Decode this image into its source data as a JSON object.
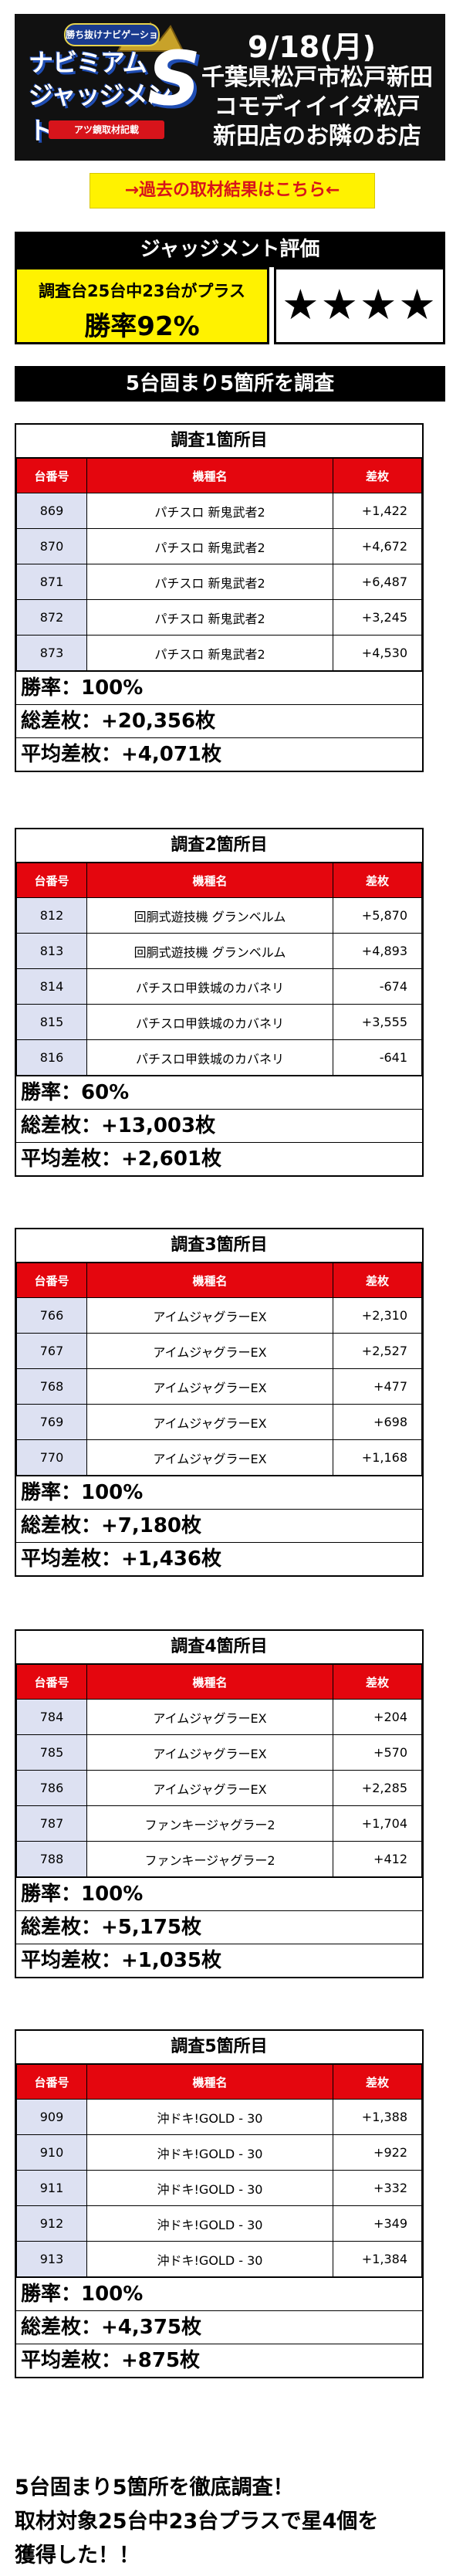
{
  "header": {
    "logo_badge": "勝ち抜けナビゲーション",
    "logo_line1": "ナビミアム",
    "logo_line2": "ジャッジメント",
    "logo_letter": "S",
    "logo_bar": "アツ鏡取材記載",
    "date": "9/18(月)",
    "store_lines": [
      "千葉県松戸市松戸新田",
      "コモディイイダ松戸",
      "新田店のお隣のお店"
    ]
  },
  "link": {
    "label": "→過去の取材結果はこちら←"
  },
  "evaluation": {
    "title": "ジャッジメント評価",
    "summary": "調査台25台中23台がプラス",
    "win_rate": "勝率92%",
    "stars": "★★★★"
  },
  "survey_title": "5台固まり5箇所を調査",
  "columns": [
    "台番号",
    "機種名",
    "差枚"
  ],
  "sections": [
    {
      "title": "調査1箇所目",
      "rows": [
        [
          "869",
          "パチスロ 新鬼武者2",
          "+1,422"
        ],
        [
          "870",
          "パチスロ 新鬼武者2",
          "+4,672"
        ],
        [
          "871",
          "パチスロ 新鬼武者2",
          "+6,487"
        ],
        [
          "872",
          "パチスロ 新鬼武者2",
          "+3,245"
        ],
        [
          "873",
          "パチスロ 新鬼武者2",
          "+4,530"
        ]
      ],
      "win_rate": "勝率：100%",
      "total": "総差枚：+20,356枚",
      "average": "平均差枚：+4,071枚"
    },
    {
      "title": "調査2箇所目",
      "rows": [
        [
          "812",
          "回胴式遊技機 グランベルム",
          "+5,870"
        ],
        [
          "813",
          "回胴式遊技機 グランベルム",
          "+4,893"
        ],
        [
          "814",
          "パチスロ甲鉄城のカバネリ",
          "-674"
        ],
        [
          "815",
          "パチスロ甲鉄城のカバネリ",
          "+3,555"
        ],
        [
          "816",
          "パチスロ甲鉄城のカバネリ",
          "-641"
        ]
      ],
      "win_rate": "勝率：60%",
      "total": "総差枚：+13,003枚",
      "average": "平均差枚：+2,601枚"
    },
    {
      "title": "調査3箇所目",
      "rows": [
        [
          "766",
          "アイムジャグラーEX",
          "+2,310"
        ],
        [
          "767",
          "アイムジャグラーEX",
          "+2,527"
        ],
        [
          "768",
          "アイムジャグラーEX",
          "+477"
        ],
        [
          "769",
          "アイムジャグラーEX",
          "+698"
        ],
        [
          "770",
          "アイムジャグラーEX",
          "+1,168"
        ]
      ],
      "win_rate": "勝率：100%",
      "total": "総差枚：+7,180枚",
      "average": "平均差枚：+1,436枚"
    },
    {
      "title": "調査4箇所目",
      "rows": [
        [
          "784",
          "アイムジャグラーEX",
          "+204"
        ],
        [
          "785",
          "アイムジャグラーEX",
          "+570"
        ],
        [
          "786",
          "アイムジャグラーEX",
          "+2,285"
        ],
        [
          "787",
          "ファンキージャグラー2",
          "+1,704"
        ],
        [
          "788",
          "ファンキージャグラー2",
          "+412"
        ]
      ],
      "win_rate": "勝率：100%",
      "total": "総差枚：+5,175枚",
      "average": "平均差枚：+1,035枚"
    },
    {
      "title": "調査5箇所目",
      "rows": [
        [
          "909",
          "沖ドキ!GOLD - 30",
          "+1,388"
        ],
        [
          "910",
          "沖ドキ!GOLD - 30",
          "+922"
        ],
        [
          "911",
          "沖ドキ!GOLD - 30",
          "+332"
        ],
        [
          "912",
          "沖ドキ!GOLD - 30",
          "+349"
        ],
        [
          "913",
          "沖ドキ!GOLD - 30",
          "+1,384"
        ]
      ],
      "win_rate": "勝率：100%",
      "total": "総差枚：+4,375枚",
      "average": "平均差枚：+875枚"
    }
  ],
  "footer": [
    "5台固まり5箇所を徹底調査！",
    "取材対象25台中23台プラスで星4個を",
    "獲得した！！"
  ]
}
